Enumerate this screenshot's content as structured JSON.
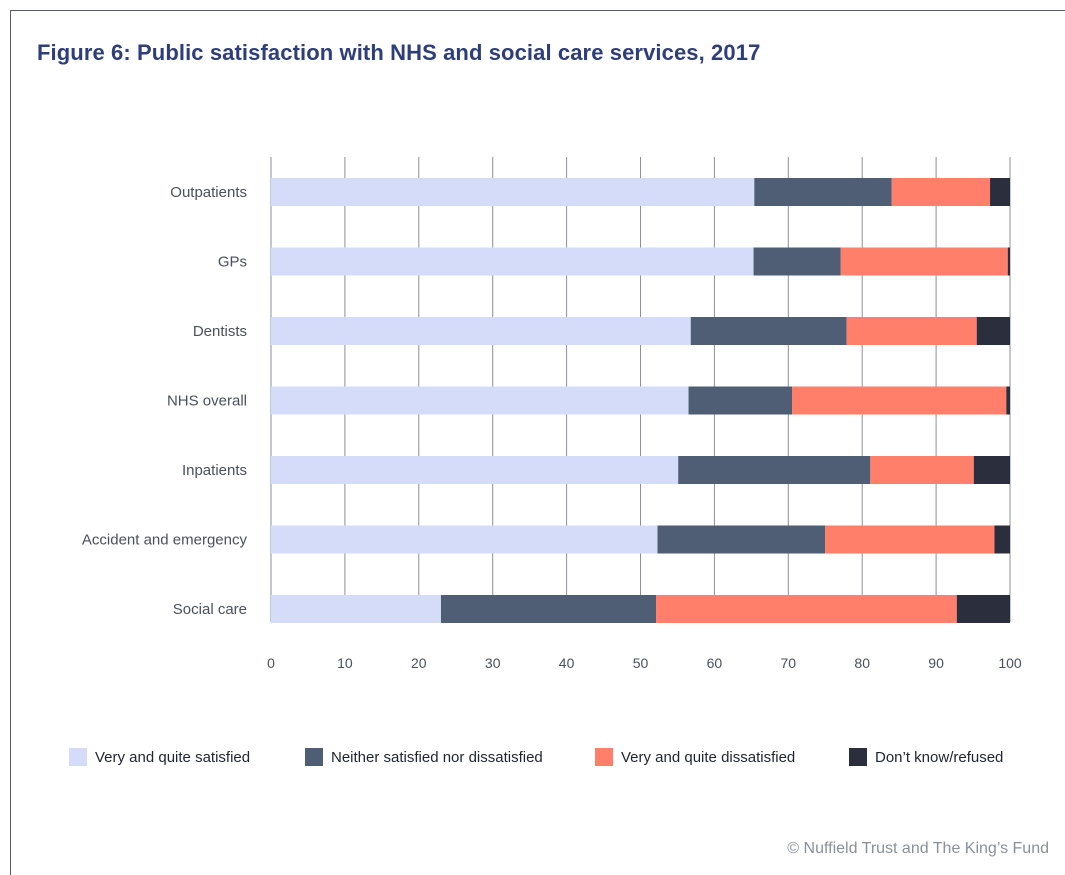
{
  "title": "Figure 6: Public satisfaction with NHS and social care services, 2017",
  "credit": "© Nuffield Trust and The King’s Fund",
  "chart_data": {
    "type": "bar",
    "orientation": "horizontal",
    "stacked": true,
    "categories": [
      "Outpatients",
      "GPs",
      "Dentists",
      "NHS overall",
      "Inpatients",
      "Accident and emergency",
      "Social care"
    ],
    "series": [
      {
        "name": "Very and quite satisfied",
        "color": "#d5dcfa",
        "values": [
          65.4,
          65.3,
          56.8,
          56.5,
          55.1,
          52.3,
          23.0
        ]
      },
      {
        "name": "Neither satisfied nor dissatisfied",
        "color": "#4f5d75",
        "values": [
          18.6,
          11.8,
          21.1,
          14.0,
          26.0,
          22.7,
          29.1
        ]
      },
      {
        "name": "Very and quite dissatisfied",
        "color": "#ff7f6b",
        "values": [
          13.3,
          22.6,
          17.6,
          29.0,
          14.0,
          22.9,
          40.7
        ]
      },
      {
        "name": "Don’t know/refused",
        "color": "#2b2e3d",
        "values": [
          2.7,
          0.3,
          4.5,
          0.5,
          4.9,
          2.1,
          7.2
        ]
      }
    ],
    "xlim": [
      0,
      100
    ],
    "xticks": [
      "0",
      "10",
      "20",
      "30",
      "40",
      "50",
      "60",
      "70",
      "80",
      "90",
      "100"
    ],
    "grid": true,
    "legend": "bottom"
  }
}
